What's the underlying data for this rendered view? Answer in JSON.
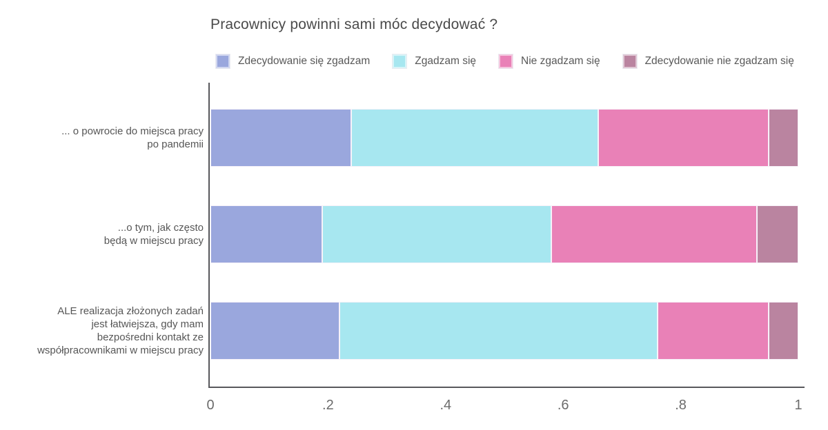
{
  "chart_data": {
    "type": "bar",
    "orientation": "horizontal",
    "stacked": true,
    "title": "Pracownicy powinni sami móc decydować ?",
    "legend_position": "top",
    "grid": false,
    "xlim": [
      0,
      1
    ],
    "categories": [
      "... o powrocie do miejsca pracy\npo pandemii",
      "...o tym, jak często\nbędą w miejscu pracy",
      "ALE realizacja złożonych zadań\njest łatwiejsza, gdy mam\nbezpośredni kontakt ze\nwspółpracownikami w miejscu pracy"
    ],
    "series": [
      {
        "name": "Zdecydowanie się zgadzam",
        "color": "#9aa7dd",
        "values": [
          0.24,
          0.19,
          0.22
        ]
      },
      {
        "name": "Zgadzam się",
        "color": "#a7e7f0",
        "values": [
          0.42,
          0.39,
          0.54
        ]
      },
      {
        "name": "Nie zgadzam się",
        "color": "#e981b7",
        "values": [
          0.29,
          0.35,
          0.19
        ]
      },
      {
        "name": "Zdecydowanie nie zgadzam się",
        "color": "#ba84a0",
        "values": [
          0.05,
          0.07,
          0.05
        ]
      }
    ],
    "x_ticks": [
      {
        "label": "0",
        "value": 0
      },
      {
        "label": ".2",
        "value": 0.2
      },
      {
        "label": ".4",
        "value": 0.4
      },
      {
        "label": ".6",
        "value": 0.6
      },
      {
        "label": ".8",
        "value": 0.8
      },
      {
        "label": "1",
        "value": 1
      }
    ],
    "axis_color": "#57575b",
    "text_color": "#565656"
  }
}
